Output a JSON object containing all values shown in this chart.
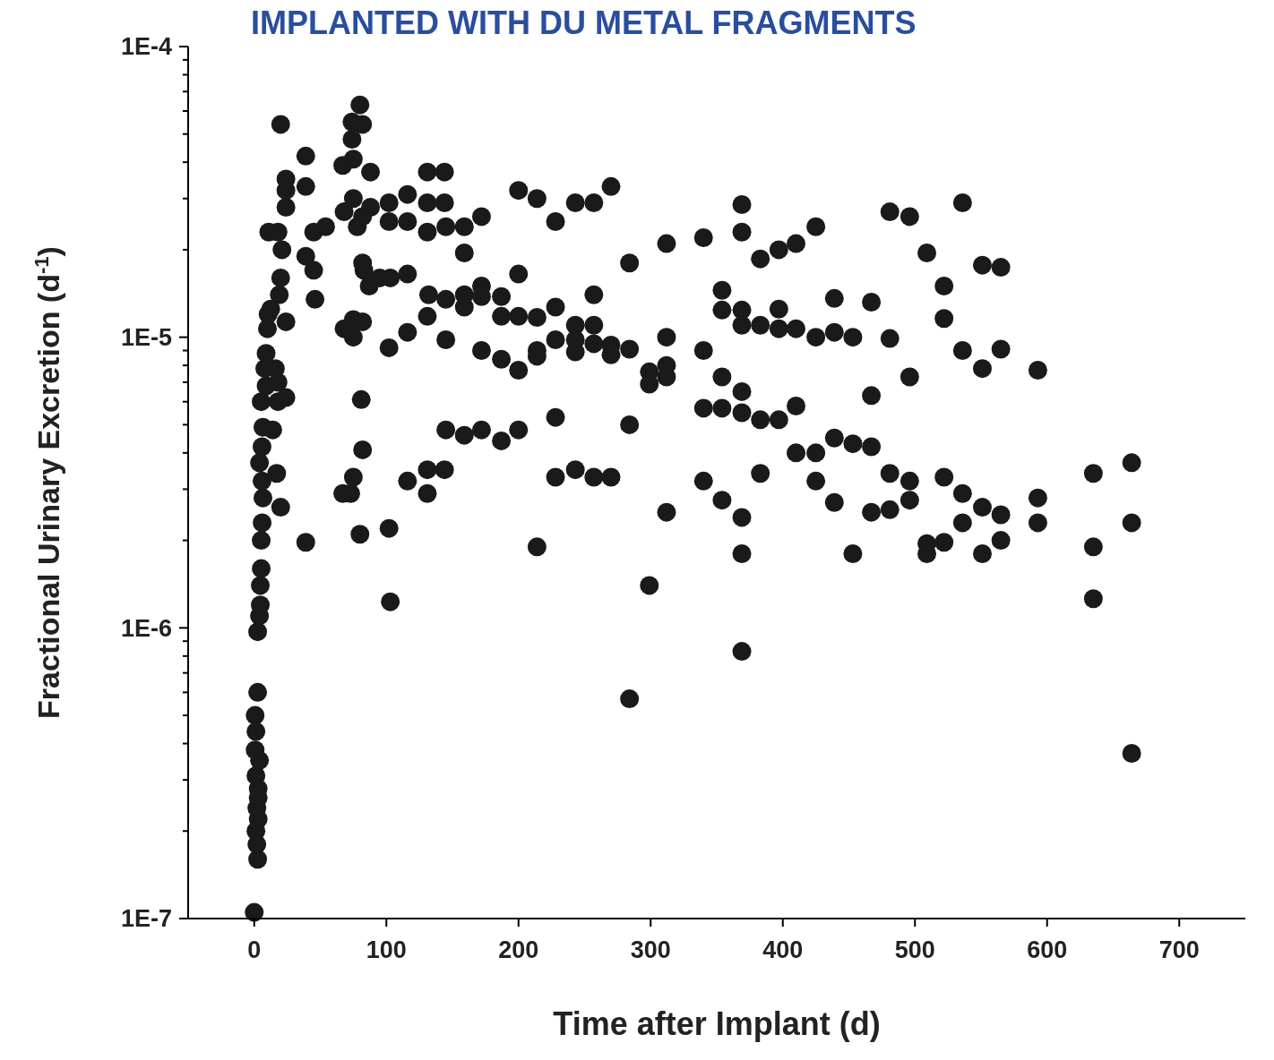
{
  "chart_data": {
    "type": "scatter",
    "title": "IMPLANTED WITH DU METAL FRAGMENTS",
    "xlabel": "Time after Implant (d)",
    "ylabel": "Fractional Urinary Excretion (d$^{-1}$)",
    "log": "y",
    "grid": false,
    "marker": "circle",
    "xlim": [
      -50,
      750
    ],
    "xticks": [
      0,
      100,
      200,
      300,
      400,
      500,
      600,
      700
    ],
    "ylim": [
      1e-07,
      0.0001
    ],
    "yticks": [
      {
        "value": 0.0001,
        "label": "1E-4"
      },
      {
        "value": 9e-05,
        "label": null
      },
      {
        "value": 8e-05,
        "label": null
      },
      {
        "value": 7e-05,
        "label": null
      },
      {
        "value": 6e-05,
        "label": null
      },
      {
        "value": 5e-05,
        "label": null
      },
      {
        "value": 4e-05,
        "label": null
      },
      {
        "value": 3e-05,
        "label": null
      },
      {
        "value": 2e-05,
        "label": null
      },
      {
        "value": 1e-05,
        "label": "1E-5"
      },
      {
        "value": 9e-06,
        "label": null
      },
      {
        "value": 8e-06,
        "label": null
      },
      {
        "value": 7e-06,
        "label": null
      },
      {
        "value": 6e-06,
        "label": null
      },
      {
        "value": 5e-06,
        "label": null
      },
      {
        "value": 4e-06,
        "label": null
      },
      {
        "value": 3e-06,
        "label": null
      },
      {
        "value": 2e-06,
        "label": null
      },
      {
        "value": 1e-06,
        "label": "1E-6"
      },
      {
        "value": 9e-07,
        "label": null
      },
      {
        "value": 8e-07,
        "label": null
      },
      {
        "value": 7e-07,
        "label": null
      },
      {
        "value": 6e-07,
        "label": null
      },
      {
        "value": 5e-07,
        "label": null
      },
      {
        "value": 4e-07,
        "label": null
      },
      {
        "value": 3e-07,
        "label": null
      },
      {
        "value": 2e-07,
        "label": null
      },
      {
        "value": 1e-07,
        "label": "1E-7"
      }
    ],
    "series": [
      {
        "color": "#1a1a1a",
        "x": [
          0,
          2.6,
          2,
          1.3,
          3,
          2,
          3,
          3,
          1.3,
          4,
          0.7,
          1.3,
          0.7,
          2.6,
          2.6,
          4,
          4.6,
          4.6,
          5.3,
          5.3,
          6,
          6.6,
          5.9,
          4,
          5.9,
          6.6,
          5.3,
          9,
          8,
          9,
          10,
          10.5,
          14,
          17,
          20,
          16,
          18,
          18,
          24,
          19,
          12.5,
          24,
          20,
          11,
          18,
          21,
          24,
          24,
          24,
          20,
          39,
          39,
          39,
          45,
          45,
          46,
          54,
          39,
          67,
          74,
          74,
          80,
          75,
          82,
          68,
          75,
          78,
          82,
          88,
          88,
          82,
          87,
          83,
          95,
          68,
          75,
          82,
          75,
          81,
          82,
          75,
          73,
          67,
          80,
          102,
          103,
          102,
          103,
          102,
          102,
          116,
          116,
          116,
          116,
          116,
          131,
          131,
          131,
          132,
          131,
          131,
          131,
          144,
          144,
          145,
          145,
          145,
          145,
          144,
          159,
          159,
          159,
          159,
          159,
          172,
          172,
          172,
          172,
          172,
          187,
          187,
          187,
          187,
          200,
          200,
          200,
          200,
          200,
          214,
          214,
          214,
          214,
          214,
          228,
          228,
          228,
          228,
          228,
          243,
          243,
          243,
          243,
          243,
          257,
          257,
          257,
          257,
          257,
          270,
          270,
          270,
          270,
          284,
          284,
          284,
          284,
          299,
          299,
          299,
          312,
          312,
          312,
          312,
          312,
          340,
          340,
          340,
          340,
          354,
          354,
          354,
          354,
          354,
          369,
          369,
          369,
          369,
          369,
          369,
          369,
          369,
          369,
          383,
          383,
          383,
          383,
          397,
          397,
          397,
          397,
          410,
          410,
          410,
          410,
          425,
          425,
          425,
          425,
          439,
          439,
          439,
          439,
          453,
          453,
          453,
          467,
          467,
          467,
          467,
          481,
          481,
          481,
          481,
          496,
          496,
          496,
          496,
          509,
          509,
          509,
          522,
          522,
          522,
          522,
          536,
          536,
          536,
          536,
          551,
          551,
          551,
          551,
          565,
          565,
          565,
          565,
          593,
          593,
          593,
          635,
          635,
          635,
          664,
          664,
          664
        ],
        "values": [
          1.05e-07,
          1.6e-07,
          1.8e-07,
          2e-07,
          2.2e-07,
          2.4e-07,
          2.6e-07,
          2.8e-07,
          3.1e-07,
          3.5e-07,
          3.8e-07,
          4.4e-07,
          5e-07,
          6e-07,
          9.7e-07,
          1.1e-06,
          1.2e-06,
          1.4e-06,
          1.6e-06,
          2e-06,
          2.3e-06,
          2.8e-06,
          3.2e-06,
          3.7e-06,
          4.2e-06,
          4.9e-06,
          6e-06,
          6.8e-06,
          7.8e-06,
          8.8e-06,
          1.07e-05,
          1.2e-05,
          4.8e-06,
          3.4e-06,
          2.6e-06,
          7.8e-06,
          7e-06,
          6e-06,
          6.2e-06,
          1.4e-05,
          1.25e-05,
          1.13e-05,
          1.6e-05,
          2.3e-05,
          2.3e-05,
          2e-05,
          2.8e-05,
          3.2e-05,
          3.5e-05,
          5.4e-05,
          3.3e-05,
          4.2e-05,
          1.9e-05,
          1.7e-05,
          2.3e-05,
          1.35e-05,
          2.4e-05,
          1.97e-06,
          3.9e-05,
          4.8e-05,
          5.5e-05,
          6.3e-05,
          4.1e-05,
          5.4e-05,
          2.7e-05,
          3e-05,
          2.4e-05,
          2.6e-05,
          3.7e-05,
          2.8e-05,
          1.8e-05,
          1.5e-05,
          1.7e-05,
          1.6e-05,
          1.07e-05,
          1.15e-05,
          1.13e-05,
          1e-05,
          6.1e-06,
          4.1e-06,
          3.3e-06,
          2.9e-06,
          2.9e-06,
          2.1e-06,
          2.2e-06,
          1.23e-06,
          9.2e-06,
          1.6e-05,
          2.9e-05,
          2.5e-05,
          2.5e-05,
          3.1e-05,
          1.65e-05,
          1.04e-05,
          3.2e-06,
          2.9e-06,
          3.5e-06,
          1.18e-05,
          1.4e-05,
          2.3e-05,
          2.9e-05,
          3.7e-05,
          3.7e-05,
          2.9e-05,
          2.4e-05,
          1.35e-05,
          9.8e-06,
          4.8e-06,
          3.5e-06,
          4.6e-06,
          1.95e-05,
          2.4e-05,
          1.27e-05,
          1.4e-05,
          2.6e-05,
          1.5e-05,
          1.38e-05,
          9e-06,
          4.8e-06,
          4.4e-06,
          8.4e-06,
          1.18e-05,
          1.38e-05,
          3.2e-05,
          1.65e-05,
          1.18e-05,
          7.7e-06,
          4.8e-06,
          3e-05,
          1.17e-05,
          9e-06,
          8.6e-06,
          1.9e-06,
          2.5e-05,
          1.27e-05,
          9.8e-06,
          5.3e-06,
          3.3e-06,
          2.9e-05,
          1.1e-05,
          9.8e-06,
          8.9e-06,
          3.5e-06,
          2.9e-05,
          1.4e-05,
          1.1e-05,
          9.5e-06,
          3.3e-06,
          3.3e-05,
          9.4e-06,
          8.7e-06,
          3.3e-06,
          1.8e-05,
          9.1e-06,
          5e-06,
          5.7e-07,
          7.6e-06,
          6.9e-06,
          1.4e-06,
          2.1e-05,
          1e-05,
          8e-06,
          7.3e-06,
          2.5e-06,
          2.2e-05,
          9e-06,
          5.7e-06,
          3.2e-06,
          1.45e-05,
          1.24e-05,
          7.3e-06,
          5.7e-06,
          2.75e-06,
          2.86e-05,
          2.3e-05,
          1.24e-05,
          1.1e-05,
          6.5e-06,
          5.5e-06,
          2.4e-06,
          1.8e-06,
          8.3e-07,
          1.86e-05,
          1.1e-05,
          5.2e-06,
          3.4e-06,
          2e-05,
          1.25e-05,
          1.07e-05,
          5.2e-06,
          2.1e-05,
          1.07e-05,
          5.8e-06,
          4e-06,
          2.4e-05,
          1e-05,
          4e-06,
          3.2e-06,
          1.36e-05,
          1.04e-05,
          4.5e-06,
          2.7e-06,
          1e-05,
          4.3e-06,
          1.8e-06,
          1.32e-05,
          6.3e-06,
          4.2e-06,
          2.5e-06,
          2.7e-05,
          9.9e-06,
          3.4e-06,
          2.55e-06,
          2.6e-05,
          7.3e-06,
          3.2e-06,
          2.75e-06,
          1.95e-05,
          1.95e-06,
          1.8e-06,
          1.5e-05,
          1.16e-05,
          3.3e-06,
          1.97e-06,
          2.9e-05,
          9e-06,
          2.9e-06,
          2.3e-06,
          1.77e-05,
          7.8e-06,
          2.6e-06,
          1.8e-06,
          1.74e-05,
          9.1e-06,
          2.45e-06,
          2e-06,
          7.7e-06,
          2.8e-06,
          2.3e-06,
          3.4e-06,
          1.9e-06,
          1.26e-06,
          3.7e-06,
          2.3e-06,
          3.7e-07
        ]
      }
    ]
  }
}
